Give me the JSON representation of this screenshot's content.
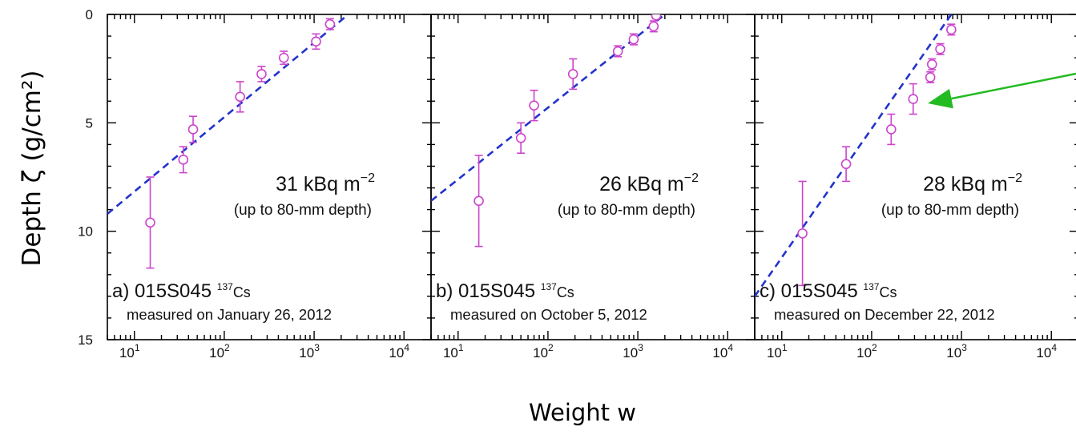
{
  "figure": {
    "y_axis_title": "Depth ζ (g/cm²)",
    "x_axis_title": "Weight w",
    "colors": {
      "points": "#cc44cc",
      "fit": "#2233cc",
      "arrow": "#22bb22",
      "axes": "#000000"
    }
  },
  "chart_data": [
    {
      "type": "scatter",
      "panel_label": "a)",
      "sample_id": "015S045",
      "isotope_mass": "137",
      "isotope_symbol": "Cs",
      "measured": "measured on January 26, 2012",
      "inventory": "31 kBq m",
      "inventory_exp": "−2",
      "depth_note": "(up to 80-mm depth)",
      "x_scale": "log",
      "xlim": [
        5,
        20000
      ],
      "ylim": [
        15,
        0
      ],
      "x_ticks": [
        "10",
        "10",
        "10",
        "10"
      ],
      "x_tick_exps": [
        "1",
        "2",
        "3",
        "4"
      ],
      "y_ticks": [
        "0",
        "5",
        "10",
        "15"
      ],
      "points": [
        {
          "w": 15,
          "depth": 9.6,
          "err": 2.1
        },
        {
          "w": 35,
          "depth": 6.7,
          "err": 0.6
        },
        {
          "w": 45,
          "depth": 5.3,
          "err": 0.6
        },
        {
          "w": 150,
          "depth": 3.8,
          "err": 0.7
        },
        {
          "w": 260,
          "depth": 2.75,
          "err": 0.35
        },
        {
          "w": 460,
          "depth": 2.0,
          "err": 0.3
        },
        {
          "w": 1050,
          "depth": 1.25,
          "err": 0.35
        },
        {
          "w": 1500,
          "depth": 0.45,
          "err": 0.25
        }
      ],
      "fit_line": [
        {
          "w": 5,
          "depth": 9.2
        },
        {
          "w": 2400,
          "depth": 0
        }
      ]
    },
    {
      "type": "scatter",
      "panel_label": "b)",
      "sample_id": "015S045",
      "isotope_mass": "137",
      "isotope_symbol": "Cs",
      "measured": "measured on October 5, 2012",
      "inventory": "26 kBq m",
      "inventory_exp": "−2",
      "depth_note": "(up to 80-mm depth)",
      "x_scale": "log",
      "xlim": [
        5,
        20000
      ],
      "ylim": [
        15,
        0
      ],
      "x_ticks": [
        "10",
        "10",
        "10",
        "10"
      ],
      "x_tick_exps": [
        "1",
        "2",
        "3",
        "4"
      ],
      "y_ticks": [
        "0",
        "5",
        "10",
        "15"
      ],
      "points": [
        {
          "w": 17,
          "depth": 8.6,
          "err": 2.1
        },
        {
          "w": 50,
          "depth": 5.7,
          "err": 0.7
        },
        {
          "w": 70,
          "depth": 4.2,
          "err": 0.7
        },
        {
          "w": 190,
          "depth": 2.75,
          "err": 0.7
        },
        {
          "w": 600,
          "depth": 1.7,
          "err": 0.25
        },
        {
          "w": 900,
          "depth": 1.15,
          "err": 0.25
        },
        {
          "w": 1500,
          "depth": 0.55,
          "err": 0.25
        },
        {
          "w": 1600,
          "depth": 0.05,
          "err": 0.15
        }
      ],
      "fit_line": [
        {
          "w": 5,
          "depth": 8.6
        },
        {
          "w": 2000,
          "depth": 0
        }
      ]
    },
    {
      "type": "scatter",
      "panel_label": "c)",
      "sample_id": "015S045",
      "isotope_mass": "137",
      "isotope_symbol": "Cs",
      "measured": "measured on December 22, 2012",
      "inventory": "28 kBq m",
      "inventory_exp": "−2",
      "depth_note": "(up to 80-mm depth)",
      "x_scale": "log",
      "xlim": [
        5,
        20000
      ],
      "ylim": [
        15,
        0
      ],
      "x_ticks": [
        "10",
        "10",
        "10",
        "10"
      ],
      "x_tick_exps": [
        "1",
        "2",
        "3",
        "4"
      ],
      "y_ticks": [
        "0",
        "5",
        "10",
        "15"
      ],
      "points": [
        {
          "w": 17,
          "depth": 10.1,
          "err": 2.4
        },
        {
          "w": 52,
          "depth": 6.9,
          "err": 0.8
        },
        {
          "w": 165,
          "depth": 5.3,
          "err": 0.7
        },
        {
          "w": 290,
          "depth": 3.9,
          "err": 0.7
        },
        {
          "w": 450,
          "depth": 2.9,
          "err": 0.25
        },
        {
          "w": 470,
          "depth": 2.3,
          "err": 0.25
        },
        {
          "w": 580,
          "depth": 1.6,
          "err": 0.25
        },
        {
          "w": 770,
          "depth": 0.7,
          "err": 0.25
        }
      ],
      "fit_line": [
        {
          "w": 5,
          "depth": 13.0
        },
        {
          "w": 770,
          "depth": 0
        }
      ]
    }
  ]
}
